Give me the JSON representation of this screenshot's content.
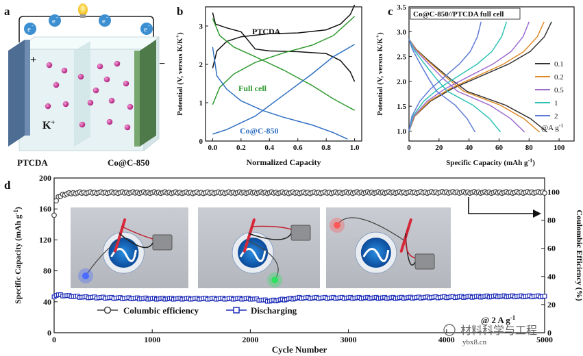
{
  "panel_letters": {
    "a": "a",
    "b": "b",
    "c": "c",
    "d": "d"
  },
  "panel_a": {
    "electron": "e",
    "electron_sup": "-",
    "plus": "+",
    "minus": "−",
    "ion": "K",
    "ion_sup": "+",
    "left_label": "PTCDA",
    "right_label": "Co@C-850",
    "colors": {
      "left_electrode": "#4e6d93",
      "right_electrode": "#4e7a4a",
      "ion": "#c2308f",
      "electrolyte": "#e6f2f3"
    }
  },
  "chart_data": [
    {
      "panel": "b",
      "type": "line",
      "xlabel": "Normalized Capacity",
      "ylabel": "Potential (V, versus K/K",
      "ylabel_sup": "+",
      "ylabel_end": ")",
      "xlim": [
        -0.05,
        1.05
      ],
      "ylim": [
        0,
        3.5
      ],
      "xticks": [
        "0.0",
        "0.2",
        "0.4",
        "0.6",
        "0.8",
        "1.0"
      ],
      "yticks": [
        "0",
        "1",
        "2",
        "3"
      ],
      "series": [
        {
          "name": "PTCDA",
          "color": "#111111",
          "segments": [
            [
              [
                0.0,
                3.35
              ],
              [
                0.02,
                3.05
              ],
              [
                0.1,
                2.95
              ],
              [
                0.2,
                2.85
              ],
              [
                0.3,
                2.4
              ],
              [
                0.4,
                2.35
              ],
              [
                0.6,
                2.33
              ],
              [
                0.8,
                2.28
              ],
              [
                0.9,
                2.1
              ],
              [
                0.97,
                1.8
              ],
              [
                1.0,
                1.55
              ]
            ],
            [
              [
                0.0,
                1.9
              ],
              [
                0.03,
                2.35
              ],
              [
                0.1,
                2.6
              ],
              [
                0.2,
                2.72
              ],
              [
                0.4,
                2.8
              ],
              [
                0.6,
                2.82
              ],
              [
                0.8,
                2.9
              ],
              [
                0.9,
                3.05
              ],
              [
                0.97,
                3.3
              ],
              [
                1.0,
                3.55
              ]
            ]
          ]
        },
        {
          "name": "Full cell",
          "color": "#2e9a2e",
          "segments": [
            [
              [
                0.0,
                3.2
              ],
              [
                0.05,
                2.75
              ],
              [
                0.15,
                2.45
              ],
              [
                0.3,
                2.2
              ],
              [
                0.5,
                1.85
              ],
              [
                0.7,
                1.45
              ],
              [
                0.85,
                1.1
              ],
              [
                1.0,
                0.8
              ]
            ],
            [
              [
                0.0,
                0.95
              ],
              [
                0.05,
                1.4
              ],
              [
                0.15,
                1.75
              ],
              [
                0.3,
                2.05
              ],
              [
                0.5,
                2.3
              ],
              [
                0.7,
                2.5
              ],
              [
                0.85,
                2.75
              ],
              [
                1.0,
                3.25
              ]
            ]
          ]
        },
        {
          "name": "Co@C-850",
          "color": "#2f6fc2",
          "segments": [
            [
              [
                0.0,
                2.45
              ],
              [
                0.03,
                1.7
              ],
              [
                0.1,
                1.35
              ],
              [
                0.2,
                1.05
              ],
              [
                0.35,
                0.8
              ],
              [
                0.5,
                0.62
              ],
              [
                0.7,
                0.42
              ],
              [
                0.85,
                0.22
              ],
              [
                0.95,
                0.05
              ]
            ],
            [
              [
                0.0,
                0.18
              ],
              [
                0.1,
                0.3
              ],
              [
                0.3,
                0.65
              ],
              [
                0.5,
                1.2
              ],
              [
                0.7,
                1.75
              ],
              [
                0.85,
                2.2
              ],
              [
                1.0,
                2.52
              ]
            ]
          ]
        }
      ]
    },
    {
      "panel": "c",
      "type": "line",
      "title": "Co@C-850//PTCDA full cell",
      "xlabel": "Specific Capacity (mAh g",
      "xlabel_sup": "-1",
      "xlabel_end": ")",
      "ylabel": "Potential (V, versus K/K",
      "ylabel_sup": "+",
      "ylabel_end": ")",
      "xlim": [
        0,
        110
      ],
      "ylim": [
        0.8,
        3.5
      ],
      "xticks": [
        "0",
        "20",
        "40",
        "60",
        "80",
        "100"
      ],
      "yticks": [
        "1.0",
        "1.5",
        "2.0",
        "2.5",
        "3.0",
        "3.5"
      ],
      "legend_title": "@A g",
      "legend_title_sup": "-1",
      "legend_placement": "right",
      "series": [
        {
          "name": "0.1",
          "color": "#333333",
          "discharge_end": 92,
          "charge_end": 95
        },
        {
          "name": "0.2",
          "color": "#e08a2a",
          "discharge_end": 87,
          "charge_end": 90
        },
        {
          "name": "0.5",
          "color": "#9d6cd0",
          "discharge_end": 77,
          "charge_end": 80
        },
        {
          "name": "1",
          "color": "#2ec2b4",
          "discharge_end": 61,
          "charge_end": 65
        },
        {
          "name": "2",
          "color": "#5e7ad6",
          "discharge_end": 44,
          "charge_end": 48
        }
      ]
    },
    {
      "panel": "d",
      "type": "scatter",
      "xlabel": "Cycle Number",
      "ylabel_left": "Specific Capacity (mAh g",
      "ylabel_left_sup": "-1",
      "ylabel_left_end": ")",
      "ylabel_right": "Coulombic Efficiency (%)",
      "xlim": [
        0,
        5000
      ],
      "ylim_left": [
        0,
        200
      ],
      "ylim_right": [
        0,
        110
      ],
      "xticks": [
        "0",
        "1000",
        "2000",
        "3000",
        "4000",
        "5000"
      ],
      "yticks_left": [
        "0",
        "40",
        "80",
        "120",
        "160",
        "200"
      ],
      "yticks_right": [
        "0",
        "20",
        "40",
        "60",
        "80",
        "100"
      ],
      "annotation": "@ 2 A g",
      "annotation_sup": "-1",
      "series": [
        {
          "name": "Columbic efficiency",
          "axis": "right",
          "color": "#444444",
          "marker": "open-circle",
          "x": [
            0,
            15,
            40,
            80,
            150,
            250,
            500,
            1000,
            1500,
            2000,
            2500,
            3000,
            3500,
            4000,
            4500,
            5000
          ],
          "y": [
            84,
            93,
            96,
            98,
            99,
            99.5,
            99.6,
            99.6,
            99.5,
            99.6,
            99.5,
            99.6,
            99.7,
            99.8,
            99.7,
            99.8
          ]
        },
        {
          "name": "Discharging",
          "axis": "left",
          "color": "#1f2db8",
          "marker": "open-square",
          "x": [
            0,
            30,
            100,
            300,
            600,
            1000,
            1500,
            2000,
            2200,
            2500,
            3000,
            3500,
            4000,
            4500,
            5000
          ],
          "y": [
            47,
            49,
            48,
            46,
            45,
            44,
            44,
            44,
            41,
            45,
            45,
            45,
            46,
            47,
            47
          ]
        }
      ]
    }
  ],
  "photos": [
    {
      "led": "#4a6bff"
    },
    {
      "led": "#30e060"
    },
    {
      "led": "#ff5a5a"
    }
  ],
  "watermark": {
    "line1": "材料科学与工程",
    "line2": "ybx8.cn"
  }
}
